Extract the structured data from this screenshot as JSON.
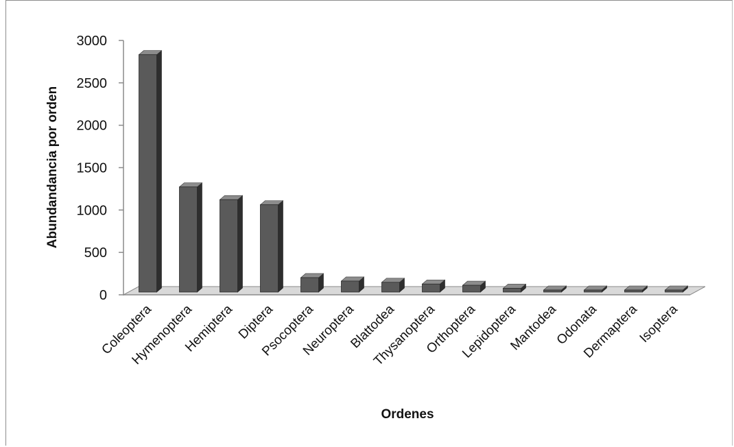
{
  "chart_data": {
    "type": "bar",
    "title": "",
    "xlabel": "Ordenes",
    "ylabel": "Abundandancia por orden",
    "ylim": [
      0,
      3000
    ],
    "yticks": [
      0,
      500,
      1000,
      1500,
      2000,
      2500,
      3000
    ],
    "grid": false,
    "legend": "none",
    "bar_color": "#5a5a5a",
    "categories": [
      "Coleoptera",
      "Hymenoptera",
      "Hemiptera",
      "Diptera",
      "Psocoptera",
      "Neuroptera",
      "Blattodea",
      "Thysanoptera",
      "Orthoptera",
      "Lepidoptera",
      "Mantodea",
      "Odonata",
      "Dermaptera",
      "Isoptera"
    ],
    "values": [
      2800,
      1240,
      1090,
      1030,
      170,
      130,
      115,
      95,
      80,
      45,
      12,
      8,
      6,
      5
    ]
  }
}
